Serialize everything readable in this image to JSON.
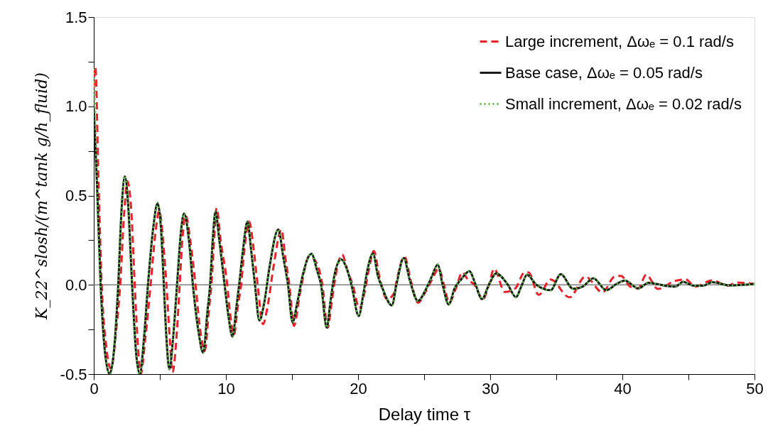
{
  "chart_data": {
    "type": "line",
    "xlabel": "Delay time τ",
    "ylabel": "K_22^slosh/(m^tank g/h_fluid)",
    "xlim": [
      0,
      50
    ],
    "ylim": [
      -0.5,
      1.5
    ],
    "xticks": [
      0,
      {
        "value": 5,
        "label": null
      },
      10,
      {
        "value": 15,
        "label": null
      },
      20,
      {
        "value": 25,
        "label": null
      },
      30,
      {
        "value": 35,
        "label": null
      },
      40,
      {
        "value": 45,
        "label": null
      },
      50
    ],
    "yticks": [
      {
        "value": -0.5,
        "label": "-0.5"
      },
      {
        "value": -0.25,
        "label": null
      },
      {
        "value": 0,
        "label": "0.0"
      },
      {
        "value": 0.25,
        "label": null
      },
      {
        "value": 0.5,
        "label": "0.5"
      },
      {
        "value": 0.75,
        "label": null
      },
      {
        "value": 1,
        "label": "1.0"
      },
      {
        "value": 1.25,
        "label": null
      },
      {
        "value": 1.5,
        "label": "1.5"
      }
    ],
    "grid": false,
    "legend": "top right",
    "ref_lines": [
      {
        "axis": "y",
        "value": 0,
        "color": "#808080"
      }
    ],
    "series": [
      {
        "name": "Large increment, Δωₑ = 0.1 rad/s",
        "color": "#e8212a",
        "line_style": "dashed",
        "x": [
          0,
          0.12,
          0.35,
          0.6,
          0.95,
          1.3,
          1.7,
          2.0,
          2.3,
          2.55,
          2.85,
          3.1,
          3.35,
          3.55,
          3.9,
          4.3,
          4.65,
          4.95,
          5.3,
          5.5,
          5.75,
          5.95,
          6.3,
          6.5,
          6.7,
          6.95,
          7.3,
          7.7,
          8.05,
          8.4,
          8.7,
          8.95,
          9.1,
          9.3,
          9.6,
          10.1,
          10.3,
          10.6,
          10.9,
          11.15,
          11.4,
          11.76,
          12.1,
          12.4,
          12.8,
          13.2,
          13.6,
          14.2,
          14.5,
          14.8,
          15.15,
          15.6,
          16.3,
          16.8,
          17.3,
          17.7,
          18.0,
          18.3,
          18.8,
          19.2,
          19.6,
          20.1,
          20.5,
          20.8,
          21.2,
          21.6,
          22.2,
          22.7,
          23.0,
          23.5,
          24.0,
          24.53,
          25.1,
          25.6,
          26.1,
          26.5,
          26.9,
          27.4,
          27.9,
          28.3,
          28.8,
          29.45,
          29.9,
          30.3,
          31.1,
          31.9,
          32.6,
          32.9,
          33.67,
          34.57,
          36.0,
          37.2,
          38.5,
          39.4,
          39.9,
          40.6,
          41.2,
          41.8,
          42.7,
          43.9,
          44.8,
          45.5,
          46.8,
          48.0,
          48.6,
          50
        ],
        "values": [
          1.1,
          1.22,
          0.6,
          0,
          -0.35,
          -0.47,
          -0.25,
          0,
          0.4,
          0.58,
          0.4,
          0,
          -0.35,
          -0.5,
          -0.3,
          0,
          0.28,
          0.415,
          0.2,
          0,
          -0.3,
          -0.49,
          -0.25,
          0,
          0.25,
          0.39,
          0.25,
          0,
          -0.25,
          -0.37,
          -0.15,
          0.05,
          0.25,
          0.43,
          0.25,
          0,
          -0.15,
          -0.28,
          -0.12,
          0,
          0.2,
          0.355,
          0.2,
          0,
          -0.22,
          -0.1,
          0.1,
          0.31,
          0.15,
          0,
          -0.23,
          -0.05,
          0.16,
          0.13,
          0,
          -0.24,
          -0.1,
          0.05,
          0.17,
          0.08,
          0,
          -0.13,
          -0.04,
          0.08,
          0.19,
          0.05,
          -0.08,
          -0.05,
          0.05,
          0.16,
          0.02,
          -0.1,
          -0.04,
          0.03,
          0.09,
          0,
          -0.1,
          -0.02,
          0.07,
          0.03,
          0,
          -0.08,
          0,
          0.09,
          -0.04,
          -0.02,
          0.07,
          0.07,
          -0.056,
          0.03,
          -0.07,
          0.046,
          -0.042,
          0.046,
          0.05,
          -0.01,
          -0.02,
          0.057,
          -0.023,
          0.02,
          0.03,
          -0.01,
          0.025,
          -0.005,
          0.013,
          0.005
        ]
      },
      {
        "name": "Base case, Δωₑ = 0.05 rad/s",
        "color": "#1a1a1a",
        "line_style": "solid",
        "x": [
          0,
          0.25,
          0.52,
          0.85,
          1.2,
          1.55,
          1.85,
          2.1,
          2.35,
          2.6,
          2.9,
          3.2,
          3.48,
          3.8,
          4.1,
          4.5,
          4.82,
          5.1,
          5.3,
          5.5,
          5.72,
          6.0,
          6.3,
          6.6,
          6.83,
          7.2,
          7.5,
          7.9,
          8.28,
          8.6,
          8.8,
          9.0,
          9.21,
          9.5,
          9.9,
          10.2,
          10.5,
          10.8,
          11.0,
          11.3,
          11.63,
          11.9,
          12.2,
          12.53,
          12.9,
          13.3,
          13.96,
          14.35,
          14.7,
          15.04,
          15.4,
          15.8,
          16.47,
          16.9,
          17.2,
          17.63,
          17.9,
          18.2,
          18.71,
          19.1,
          19.5,
          20.05,
          20.4,
          20.7,
          21.13,
          21.5,
          21.85,
          22.56,
          22.9,
          23.46,
          23.9,
          24.53,
          25.1,
          25.6,
          26.02,
          26.4,
          26.86,
          27.3,
          27.8,
          28.42,
          28.9,
          29.37,
          29.9,
          30.45,
          31.34,
          31.94,
          32.4,
          32.78,
          33.5,
          34.57,
          35.34,
          36.27,
          37.0,
          37.8,
          38.78,
          39.6,
          40.2,
          41.2,
          42.0,
          43.1,
          44.0,
          44.6,
          45.4,
          46.1,
          46.8,
          48.1,
          50
        ],
        "values": [
          0.99,
          0.55,
          0,
          -0.38,
          -0.5,
          -0.35,
          0,
          0.42,
          0.607,
          0.45,
          0,
          -0.38,
          -0.5,
          -0.3,
          0,
          0.32,
          0.455,
          0.3,
          0,
          -0.3,
          -0.473,
          -0.3,
          0,
          0.3,
          0.4,
          0.25,
          0,
          -0.25,
          -0.38,
          -0.15,
          0,
          0.25,
          0.41,
          0.25,
          0,
          -0.18,
          -0.29,
          -0.12,
          0,
          0.2,
          0.355,
          0.2,
          0,
          -0.2,
          -0.1,
          0.1,
          0.31,
          0.15,
          0,
          -0.21,
          -0.1,
          0.05,
          0.174,
          0.08,
          0,
          -0.24,
          -0.1,
          0.05,
          0.143,
          0.1,
          0,
          -0.175,
          -0.05,
          0.08,
          0.176,
          0.05,
          -0.02,
          -0.115,
          0,
          0.15,
          0.03,
          -0.09,
          -0.03,
          0.05,
          0.113,
          0,
          -0.11,
          -0.02,
          0.03,
          0.077,
          0,
          -0.08,
          0,
          0.064,
          0,
          -0.069,
          0,
          0.057,
          0,
          -0.03,
          0.06,
          -0.022,
          -0.01,
          0.037,
          -0.03,
          0.007,
          0.024,
          -0.02,
          0.012,
          -0.003,
          -0.01,
          0.017,
          -0.005,
          -0.005,
          0.015,
          -0.003,
          0.005
        ]
      },
      {
        "name": "Small increment, Δωₑ = 0.02 rad/s",
        "color": "#5cb847",
        "line_style": "dotted",
        "x": [
          0,
          0.12,
          0.25,
          0.52,
          0.85,
          1.2,
          1.55,
          1.85,
          2.1,
          2.35,
          2.6,
          2.9,
          3.2,
          3.48,
          3.8,
          4.1,
          4.5,
          4.82,
          5.1,
          5.3,
          5.5,
          5.72,
          6.0,
          6.3,
          6.6,
          6.83,
          7.2,
          7.5,
          7.9,
          8.28,
          8.6,
          8.8,
          9.0,
          9.21,
          9.5,
          9.9,
          10.2,
          10.5,
          10.8,
          11.0,
          11.3,
          11.63,
          11.9,
          12.2,
          12.53,
          12.9,
          13.3,
          13.96,
          14.35,
          14.7,
          15.04,
          15.4,
          15.8,
          16.47,
          16.9,
          17.2,
          17.63,
          17.9,
          18.2,
          18.71,
          19.1,
          19.5,
          20.05,
          20.4,
          20.7,
          21.13,
          21.5,
          21.85,
          22.56,
          22.9,
          23.46,
          23.9,
          24.53,
          25.1,
          25.6,
          26.02,
          26.4,
          26.86,
          27.3,
          27.8,
          28.42,
          28.9,
          29.37,
          29.9,
          30.45,
          31.34,
          31.94,
          32.4,
          32.78,
          33.5,
          34.57,
          35.34,
          36.27,
          37.0,
          37.8,
          38.78,
          39.6,
          40.2,
          41.2,
          42.0,
          43.1,
          44.0,
          44.6,
          45.4,
          46.1,
          46.8,
          48.1,
          50
        ],
        "values": [
          1.21,
          0.95,
          0.55,
          0,
          -0.38,
          -0.5,
          -0.35,
          0,
          0.42,
          0.61,
          0.45,
          0,
          -0.38,
          -0.5,
          -0.3,
          0,
          0.32,
          0.46,
          0.3,
          0,
          -0.3,
          -0.47,
          -0.3,
          0,
          0.3,
          0.4,
          0.25,
          0,
          -0.25,
          -0.38,
          -0.15,
          0,
          0.25,
          0.41,
          0.25,
          0,
          -0.18,
          -0.29,
          -0.12,
          0,
          0.2,
          0.355,
          0.2,
          0,
          -0.2,
          -0.1,
          0.1,
          0.31,
          0.15,
          0,
          -0.21,
          -0.1,
          0.05,
          0.174,
          0.08,
          0,
          -0.24,
          -0.1,
          0.05,
          0.143,
          0.1,
          0,
          -0.175,
          -0.05,
          0.08,
          0.176,
          0.05,
          -0.02,
          -0.115,
          0,
          0.15,
          0.03,
          -0.09,
          -0.03,
          0.05,
          0.113,
          0,
          -0.11,
          -0.02,
          0.03,
          0.077,
          0,
          -0.08,
          0,
          0.064,
          0,
          -0.069,
          0,
          0.057,
          0,
          -0.03,
          0.06,
          -0.022,
          -0.01,
          0.037,
          -0.03,
          0.007,
          0.024,
          -0.02,
          0.012,
          -0.003,
          -0.01,
          0.017,
          -0.005,
          -0.005,
          0.015,
          -0.003,
          0.005
        ]
      }
    ]
  }
}
